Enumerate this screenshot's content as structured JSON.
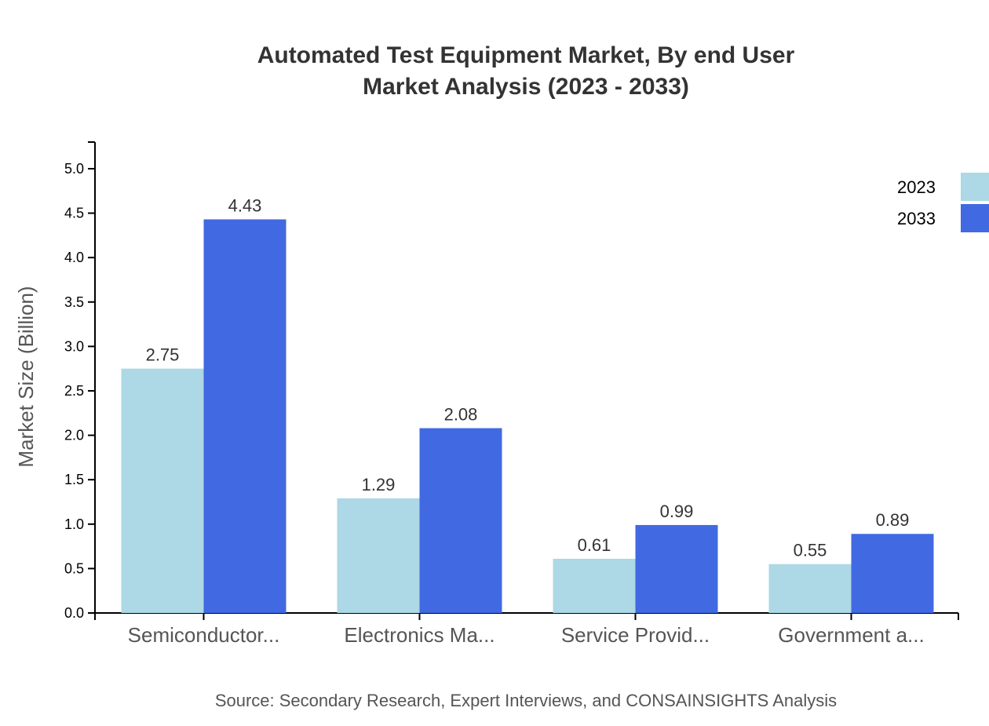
{
  "chart_data": {
    "type": "bar",
    "title_line1": "Automated Test Equipment Market, By end User",
    "title_line2": "Market Analysis (2023 - 2033)",
    "ylabel": "Market Size (Billion)",
    "xlabel": "",
    "ylim": [
      0,
      5.3
    ],
    "yticks": [
      "0.0",
      "0.5",
      "1.0",
      "1.5",
      "2.0",
      "2.5",
      "3.0",
      "3.5",
      "4.0",
      "4.5",
      "5.0"
    ],
    "categories": [
      "Semiconductor...",
      "Electronics Ma...",
      "Service Provid...",
      "Government a..."
    ],
    "series": [
      {
        "name": "2023",
        "color": "#add8e6",
        "values": [
          2.75,
          1.29,
          0.61,
          0.55
        ]
      },
      {
        "name": "2033",
        "color": "#4169e1",
        "values": [
          4.43,
          2.08,
          0.99,
          0.89
        ]
      }
    ],
    "legend_position": "top-right",
    "grid": false,
    "source": "Source: Secondary Research, Expert Interviews, and CONSAINSIGHTS Analysis"
  }
}
